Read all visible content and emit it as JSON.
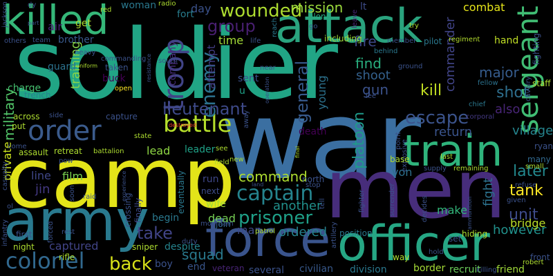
{
  "words": [
    {
      "text": "soldier",
      "color": "#21a585"
    },
    {
      "text": "war",
      "color": "#3b6fa1"
    },
    {
      "text": "camp",
      "color": "#e3e419"
    },
    {
      "text": "men",
      "color": "#472d7b"
    },
    {
      "text": "attack",
      "color": "#2aa37e"
    },
    {
      "text": "killed",
      "color": "#35b779"
    },
    {
      "text": "army",
      "color": "#29798e"
    },
    {
      "text": "force",
      "color": "#3a548c"
    },
    {
      "text": "officer",
      "color": "#26a784"
    },
    {
      "text": "order",
      "color": "#3b5b8c"
    },
    {
      "text": "train",
      "color": "#2fb47c"
    },
    {
      "text": "sergeant",
      "color": "#40bc73"
    },
    {
      "text": "colonel",
      "color": "#31688e"
    },
    {
      "text": "wounded",
      "color": "#addc30"
    },
    {
      "text": "troop",
      "color": "#414487"
    },
    {
      "text": "battle",
      "color": "#b5de2b"
    },
    {
      "text": "captain",
      "color": "#25848e"
    },
    {
      "text": "prisoner",
      "color": "#1fa088"
    },
    {
      "text": "enemy",
      "color": "#2c728e"
    },
    {
      "text": "general",
      "color": "#375a8c"
    },
    {
      "text": "escape",
      "color": "#3b538b"
    },
    {
      "text": "lieutenant",
      "color": "#3e4a89"
    },
    {
      "text": "group",
      "color": "#481f70"
    },
    {
      "text": "mission",
      "color": "#9bd93c"
    },
    {
      "text": "take",
      "color": "#414487"
    },
    {
      "text": "back",
      "color": "#d8e219"
    },
    {
      "text": "tank",
      "color": "#fde725"
    },
    {
      "text": "unit",
      "color": "#3e4c8a"
    },
    {
      "text": "shot",
      "color": "#2e6f8e"
    },
    {
      "text": "command",
      "color": "#addc30"
    },
    {
      "text": "commander",
      "color": "#414487"
    },
    {
      "text": "later",
      "color": "#23898e"
    },
    {
      "text": "kill",
      "color": "#c2df23"
    },
    {
      "text": "major",
      "color": "#365c8d"
    },
    {
      "text": "platoon",
      "color": "#1f9a8a"
    },
    {
      "text": "military",
      "color": "#52c569"
    },
    {
      "text": "training",
      "color": "#86d549"
    },
    {
      "text": "squad",
      "color": "#29798e"
    },
    {
      "text": "another",
      "color": "#21918c"
    },
    {
      "text": "however",
      "color": "#21918c"
    },
    {
      "text": "ordered",
      "color": "#26828e"
    },
    {
      "text": "gun",
      "color": "#3b528b"
    },
    {
      "text": "find",
      "color": "#29af7f"
    },
    {
      "text": "shoot",
      "color": "#34618d"
    },
    {
      "text": "fire",
      "color": "#3e4989"
    },
    {
      "text": "young",
      "color": "#2c728e"
    },
    {
      "text": "village",
      "color": "#25858e"
    },
    {
      "text": "return",
      "color": "#3a548c"
    },
    {
      "text": "also",
      "color": "#482576"
    },
    {
      "text": "combat",
      "color": "#e5e419"
    },
    {
      "text": "fight",
      "color": "#2c728e"
    },
    {
      "text": "bridge",
      "color": "#bade28"
    },
    {
      "text": "private",
      "color": "#cae11f"
    },
    {
      "text": "line",
      "color": "#3f4788"
    },
    {
      "text": "jin",
      "color": "#443983"
    },
    {
      "text": "film",
      "color": "#7ad151"
    },
    {
      "text": "day",
      "color": "#3b528b"
    },
    {
      "text": "time",
      "color": "#a2da37"
    },
    {
      "text": "attempt",
      "color": "#433d84"
    },
    {
      "text": "company",
      "color": "#472d7b"
    },
    {
      "text": "leader",
      "color": "#1fa187"
    },
    {
      "text": "lead",
      "color": "#8fd744"
    },
    {
      "text": "captured",
      "color": "#414487"
    },
    {
      "text": "begin",
      "color": "#2a788e"
    },
    {
      "text": "dead",
      "color": "#75d054"
    },
    {
      "text": "end",
      "color": "#39568c"
    },
    {
      "text": "boy",
      "color": "#3b528b"
    },
    {
      "text": "veteran",
      "color": "#482475"
    },
    {
      "text": "several",
      "color": "#3b528b"
    },
    {
      "text": "civilian",
      "color": "#38598c"
    },
    {
      "text": "division",
      "color": "#2a788e"
    },
    {
      "text": "border",
      "color": "#a5db36"
    },
    {
      "text": "recruit",
      "color": "#6ccd5a"
    },
    {
      "text": "friend",
      "color": "#a0da39"
    },
    {
      "text": "make",
      "color": "#32b67a"
    },
    {
      "text": "von",
      "color": "#2d718e"
    },
    {
      "text": "death",
      "color": "#440154"
    },
    {
      "text": "north",
      "color": "#3b528b"
    },
    {
      "text": "despite",
      "color": "#25848e"
    },
    {
      "text": "finally",
      "color": "#3e4a89"
    },
    {
      "text": "eventually",
      "color": "#2a788e"
    },
    {
      "text": "crossing",
      "color": "#3b528b"
    },
    {
      "text": "wife",
      "color": "#a0da39"
    },
    {
      "text": "run",
      "color": "#3f4788"
    },
    {
      "text": "next",
      "color": "#3e4c8a"
    },
    {
      "text": "join",
      "color": "#31688e"
    },
    {
      "text": "man",
      "color": "#3e4a89"
    },
    {
      "text": "sent",
      "color": "#3b528b"
    },
    {
      "text": "u",
      "color": "#1fa187"
    },
    {
      "text": "fort",
      "color": "#287d8e"
    },
    {
      "text": "woman",
      "color": "#2a788e"
    },
    {
      "text": "get",
      "color": "#addc30"
    },
    {
      "text": "air",
      "color": "#482173"
    },
    {
      "text": "brother",
      "color": "#38598c"
    },
    {
      "text": "guard",
      "color": "#2c728e"
    },
    {
      "text": "charge",
      "color": "#46c06f"
    },
    {
      "text": "trench",
      "color": "#26828e"
    },
    {
      "text": "taken",
      "color": "#3b528b"
    },
    {
      "text": "buck",
      "color": "#440154"
    },
    {
      "text": "open",
      "color": "#fde725"
    },
    {
      "text": "lt",
      "color": "#3e4c8a"
    },
    {
      "text": "along",
      "color": "#25ab82"
    },
    {
      "text": "including",
      "color": "#9fda3a"
    },
    {
      "text": "go",
      "color": "#3a548c"
    },
    {
      "text": "near",
      "color": "#3b528b"
    },
    {
      "text": "leave",
      "color": "#482677"
    },
    {
      "text": "behind",
      "color": "#2a788e"
    },
    {
      "text": "member",
      "color": "#3b528b"
    },
    {
      "text": "pilot",
      "color": "#2a788e"
    },
    {
      "text": "regiment",
      "color": "#b2dd2d"
    },
    {
      "text": "hand",
      "color": "#c0df25"
    },
    {
      "text": "ground",
      "color": "#3b528b"
    },
    {
      "text": "chief",
      "color": "#2a788e"
    },
    {
      "text": "fighting",
      "color": "#3b528b"
    },
    {
      "text": "cavalry",
      "color": "#3b528b"
    },
    {
      "text": "staff",
      "color": "#addc30"
    },
    {
      "text": "corporal",
      "color": "#443983"
    },
    {
      "text": "reach",
      "color": "#2a788e"
    },
    {
      "text": "fellow",
      "color": "#2c728e"
    },
    {
      "text": "many",
      "color": "#31688e"
    },
    {
      "text": "small",
      "color": "#addc30"
    },
    {
      "text": "ryan",
      "color": "#3b528b"
    },
    {
      "text": "given",
      "color": "#3b528b"
    },
    {
      "text": "refuse",
      "color": "#3b528b"
    },
    {
      "text": "front",
      "color": "#3b528b"
    },
    {
      "text": "robert",
      "color": "#addc30"
    },
    {
      "text": "killing",
      "color": "#3b528b"
    },
    {
      "text": "hold",
      "color": "#3b528b"
    },
    {
      "text": "way",
      "color": "#addc30"
    },
    {
      "text": "set",
      "color": "#3b528b"
    },
    {
      "text": "hiding",
      "color": "#addc30"
    },
    {
      "text": "patrol",
      "color": "#addc30"
    },
    {
      "text": "position",
      "color": "#2a788e"
    },
    {
      "text": "rest",
      "color": "#3b528b"
    },
    {
      "text": "rifle",
      "color": "#addc30"
    },
    {
      "text": "sniper",
      "color": "#addc30"
    },
    {
      "text": "night",
      "color": "#addc30"
    },
    {
      "text": "infantry",
      "color": "#3b528b"
    },
    {
      "text": "first",
      "color": "#3b528b"
    },
    {
      "text": "forced",
      "color": "#3b528b"
    },
    {
      "text": "duty",
      "color": "#3b528b"
    },
    {
      "text": "mountain",
      "color": "#3b528b"
    },
    {
      "text": "raid",
      "color": "#3b528b"
    },
    {
      "text": "pow",
      "color": "#3b528b"
    },
    {
      "text": "soon",
      "color": "#3b528b"
    },
    {
      "text": "battalion",
      "color": "#addc30"
    },
    {
      "text": "retreat",
      "color": "#addc30"
    },
    {
      "text": "assault",
      "color": "#addc30"
    },
    {
      "text": "state",
      "color": "#addc30"
    },
    {
      "text": "field",
      "color": "#addc30"
    },
    {
      "text": "see",
      "color": "#addc30"
    },
    {
      "text": "new",
      "color": "#addc30"
    },
    {
      "text": "across",
      "color": "#addc30"
    },
    {
      "text": "side",
      "color": "#3b528b"
    },
    {
      "text": "capture",
      "color": "#3b528b"
    },
    {
      "text": "destroyed",
      "color": "#ef3b2c"
    },
    {
      "text": "put",
      "color": "#addc30"
    },
    {
      "text": "come",
      "color": "#3b528b"
    },
    {
      "text": "others",
      "color": "#3b528b"
    },
    {
      "text": "team",
      "color": "#3b528b"
    },
    {
      "text": "commanding",
      "color": "#3b528b"
    },
    {
      "text": "uniform",
      "color": "#addc30"
    },
    {
      "text": "heavy",
      "color": "#3b528b"
    },
    {
      "text": "red",
      "color": "#addc30"
    },
    {
      "text": "radio",
      "color": "#addc30"
    },
    {
      "text": "south",
      "color": "#3b528b"
    },
    {
      "text": "life",
      "color": "#3b528b"
    },
    {
      "text": "resistance",
      "color": "#3b528b"
    },
    {
      "text": "jackson",
      "color": "#3b528b"
    },
    {
      "text": "part",
      "color": "#3b528b"
    },
    {
      "text": "dy",
      "color": "#3b528b"
    },
    {
      "text": "try",
      "color": "#addc30"
    },
    {
      "text": "last",
      "color": "#addc30"
    },
    {
      "text": "supply",
      "color": "#3b528b"
    },
    {
      "text": "remaining",
      "color": "#addc30"
    },
    {
      "text": "explosive",
      "color": "#3b528b"
    },
    {
      "text": "point",
      "color": "#3b528b"
    },
    {
      "text": "base",
      "color": "#addc30"
    },
    {
      "text": "lee",
      "color": "#3b528b"
    },
    {
      "text": "final",
      "color": "#addc30"
    },
    {
      "text": "away",
      "color": "#3b528b"
    },
    {
      "text": "operation",
      "color": "#3b528b"
    },
    {
      "text": "land",
      "color": "#3b528b"
    },
    {
      "text": "stop",
      "color": "#3b528b"
    },
    {
      "text": "tell",
      "color": "#3b528b"
    },
    {
      "text": "artillery",
      "color": "#3b528b"
    },
    {
      "text": "fighter",
      "color": "#3b528b"
    },
    {
      "text": "surrender",
      "color": "#3b528b"
    },
    {
      "text": "decides",
      "color": "#3b528b"
    },
    {
      "text": "ammunition",
      "color": "#3b528b"
    },
    {
      "text": "experience",
      "color": "#3b528b"
    },
    {
      "text": "casualty",
      "color": "#3b528b"
    },
    {
      "text": "ol",
      "color": "#3b528b"
    }
  ]
}
